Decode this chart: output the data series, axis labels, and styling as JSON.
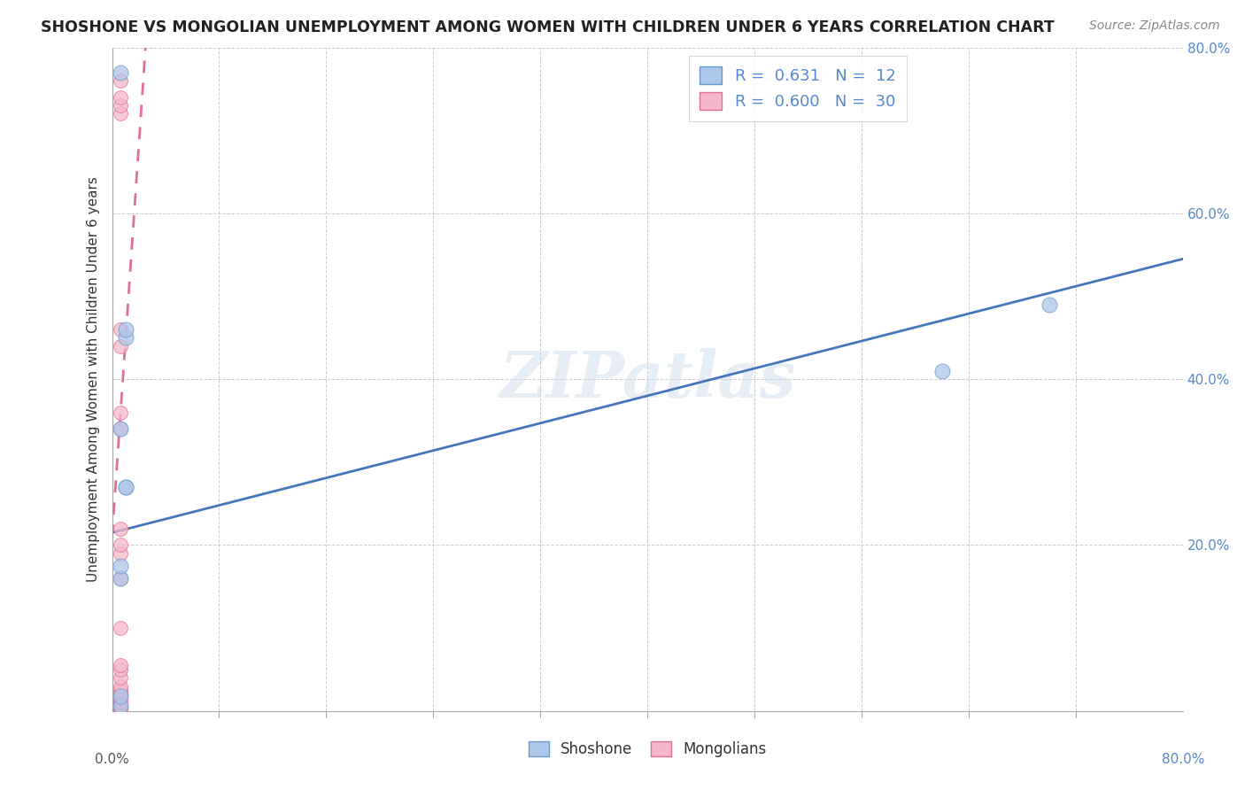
{
  "title": "SHOSHONE VS MONGOLIAN UNEMPLOYMENT AMONG WOMEN WITH CHILDREN UNDER 6 YEARS CORRELATION CHART",
  "source": "Source: ZipAtlas.com",
  "ylabel": "Unemployment Among Women with Children Under 6 years",
  "xlim": [
    0.0,
    0.8
  ],
  "ylim": [
    0.0,
    0.8
  ],
  "background_color": "#ffffff",
  "watermark_text": "ZIPatlas",
  "shoshone_color": "#aec6e8",
  "mongolian_color": "#f5b8ca",
  "shoshone_edge_color": "#6699cc",
  "mongolian_edge_color": "#e07090",
  "shoshone_line_color": "#4477bb",
  "mongolian_line_color": "#e07090",
  "shoshone_R": "0.631",
  "shoshone_N": "12",
  "mongolian_R": "0.600",
  "mongolian_N": "30",
  "shoshone_points_x": [
    0.006,
    0.006,
    0.01,
    0.01,
    0.01,
    0.01,
    0.62,
    0.7,
    0.006,
    0.006,
    0.006,
    0.006
  ],
  "shoshone_points_y": [
    0.006,
    0.77,
    0.27,
    0.27,
    0.45,
    0.46,
    0.41,
    0.49,
    0.16,
    0.175,
    0.34,
    0.018
  ],
  "mongolian_points_x": [
    0.006,
    0.006,
    0.006,
    0.006,
    0.006,
    0.006,
    0.006,
    0.006,
    0.006,
    0.006,
    0.006,
    0.006,
    0.006,
    0.006,
    0.006,
    0.006,
    0.006,
    0.006,
    0.006,
    0.006,
    0.006,
    0.006,
    0.006,
    0.006,
    0.006,
    0.006,
    0.006,
    0.006,
    0.006,
    0.006
  ],
  "mongolian_points_y": [
    0.0,
    0.001,
    0.002,
    0.003,
    0.004,
    0.005,
    0.008,
    0.012,
    0.015,
    0.018,
    0.02,
    0.022,
    0.025,
    0.03,
    0.04,
    0.05,
    0.055,
    0.1,
    0.16,
    0.19,
    0.2,
    0.22,
    0.34,
    0.36,
    0.44,
    0.46,
    0.72,
    0.73,
    0.74,
    0.76
  ],
  "shoshone_trend_x0": 0.0,
  "shoshone_trend_y0": 0.215,
  "shoshone_trend_x1": 0.8,
  "shoshone_trend_y1": 0.545,
  "mongolian_trend_x0": 0.0,
  "mongolian_trend_y0": 0.21,
  "mongolian_trend_x1": 0.025,
  "mongolian_trend_y1": 0.8,
  "minor_xticks": [
    0.08,
    0.16,
    0.24,
    0.32,
    0.4,
    0.48,
    0.56,
    0.64,
    0.72
  ],
  "minor_yticks": [
    0.2,
    0.4,
    0.6,
    0.8
  ],
  "xtick_ends": [
    0.0,
    0.8
  ],
  "xtick_end_labels": [
    "0.0%",
    "80.0%"
  ],
  "ytick_right_labels": [
    "20.0%",
    "40.0%",
    "60.0%",
    "80.0%"
  ],
  "ytick_right_values": [
    0.2,
    0.4,
    0.6,
    0.8
  ]
}
